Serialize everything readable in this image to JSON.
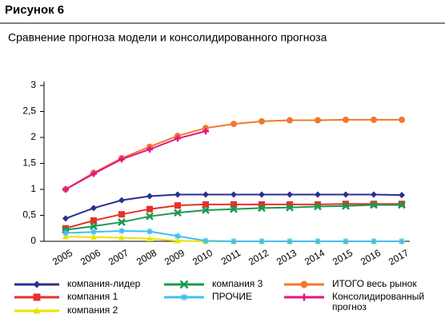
{
  "header": "Рисунок 6",
  "chart_data": {
    "type": "line",
    "title": "Сравнение прогноза модели и консолидированного прогноза",
    "categories": [
      "2005",
      "2006",
      "2007",
      "2008",
      "2009",
      "2010",
      "2011",
      "2012",
      "2013",
      "2014",
      "2015",
      "2016",
      "2017"
    ],
    "ylim": [
      0,
      3
    ],
    "yticks": [
      0,
      {
        "value": 0.5,
        "label": "0,5"
      },
      1,
      {
        "value": 1.5,
        "label": "1,5"
      },
      2,
      {
        "value": 2.5,
        "label": "2,5"
      },
      3
    ],
    "grid": false,
    "series": [
      {
        "name": "компания-лидер",
        "color": "#2b2f8f",
        "marker": "diamond",
        "values": [
          0.44,
          0.64,
          0.79,
          0.87,
          0.9,
          0.9,
          0.9,
          0.9,
          0.9,
          0.9,
          0.9,
          0.9,
          0.89
        ]
      },
      {
        "name": "компания 1",
        "color": "#e8302a",
        "marker": "square",
        "values": [
          0.25,
          0.4,
          0.52,
          0.62,
          0.69,
          0.71,
          0.71,
          0.71,
          0.71,
          0.71,
          0.72,
          0.72,
          0.72
        ]
      },
      {
        "name": "компания 2",
        "color": "#f0e000",
        "marker": "triangle",
        "values": [
          0.09,
          0.08,
          0.07,
          0.05,
          0.01,
          0,
          0,
          0,
          0,
          0,
          0,
          0,
          0
        ]
      },
      {
        "name": "компания 3",
        "color": "#1a9a50",
        "marker": "x",
        "values": [
          0.22,
          0.29,
          0.37,
          0.48,
          0.55,
          0.6,
          0.62,
          0.64,
          0.65,
          0.67,
          0.68,
          0.7,
          0.7
        ]
      },
      {
        "name": "ПРОЧИЕ",
        "color": "#40c0f0",
        "marker": "star",
        "values": [
          0.16,
          0.18,
          0.2,
          0.19,
          0.1,
          0.01,
          0,
          0,
          0,
          0,
          0,
          0,
          0
        ]
      },
      {
        "name": "ИТОГО весь рынок",
        "color": "#f07830",
        "marker": "circle",
        "values": [
          1.0,
          1.32,
          1.6,
          1.82,
          2.03,
          2.18,
          2.26,
          2.31,
          2.33,
          2.33,
          2.34,
          2.34,
          2.34
        ]
      },
      {
        "name": "Консолидированный прогноз",
        "color": "#e0158a",
        "marker": "plus",
        "values": [
          1.0,
          1.3,
          1.58,
          1.77,
          1.98,
          2.12,
          null,
          null,
          null,
          null,
          null,
          null,
          null
        ]
      }
    ]
  }
}
